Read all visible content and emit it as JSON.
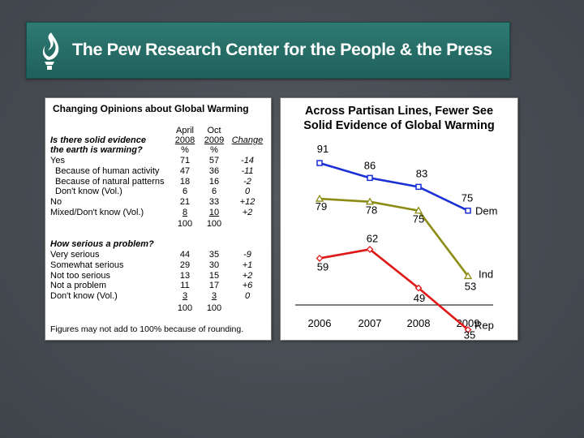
{
  "banner": {
    "title": "The Pew Research Center for the People & the Press"
  },
  "table": {
    "title": "Changing Opinions about Global Warming",
    "col1_top": "April",
    "col1_bottom": "2008",
    "col1_unit": "%",
    "col2_top": "Oct",
    "col2_bottom": "2009",
    "col2_unit": "%",
    "col3": "Change",
    "q1_line1": "Is there solid evidence",
    "q1_line2": "the earth is warming?",
    "section1": [
      {
        "label": "Yes",
        "a": "71",
        "b": "57",
        "c": "-14"
      },
      {
        "label": "Because of human activity",
        "a": "47",
        "b": "36",
        "c": "-11"
      },
      {
        "label": "Because of natural patterns",
        "a": "18",
        "b": "16",
        "c": "-2"
      },
      {
        "label": "Don't know (Vol.)",
        "a": "6",
        "b": "6",
        "c": "0"
      },
      {
        "label": "No",
        "a": "21",
        "b": "33",
        "c": "+12"
      },
      {
        "label": "Mixed/Don't know (Vol.)",
        "a": "8",
        "b": "10",
        "c": "+2"
      }
    ],
    "total1_a": "100",
    "total1_b": "100",
    "q2": "How serious a problem?",
    "section2": [
      {
        "label": "Very serious",
        "a": "44",
        "b": "35",
        "c": "-9"
      },
      {
        "label": "Somewhat serious",
        "a": "29",
        "b": "30",
        "c": "+1"
      },
      {
        "label": "Not too serious",
        "a": "13",
        "b": "15",
        "c": "+2"
      },
      {
        "label": "Not a problem",
        "a": "11",
        "b": "17",
        "c": "+6"
      },
      {
        "label": "Don't know (Vol.)",
        "a": "3",
        "b": "3",
        "c": "0"
      }
    ],
    "total2_a": "100",
    "total2_b": "100",
    "footnote": "Figures may not add to 100% because of rounding."
  },
  "chart_data": {
    "type": "line",
    "title_line1": "Across Partisan Lines, Fewer See",
    "title_line2": "Solid Evidence of Global Warming",
    "x": [
      "2006",
      "2007",
      "2008",
      "2009"
    ],
    "ylim": [
      30,
      95
    ],
    "series": [
      {
        "name": "Dem",
        "values": [
          91,
          86,
          83,
          75
        ],
        "color": "#1a2fd6",
        "marker": "square"
      },
      {
        "name": "Ind",
        "values": [
          79,
          78,
          75,
          53
        ],
        "color": "#8c8c14",
        "marker": "triangle"
      },
      {
        "name": "Rep",
        "values": [
          59,
          62,
          49,
          35
        ],
        "color": "#e01818",
        "marker": "diamond"
      }
    ]
  }
}
